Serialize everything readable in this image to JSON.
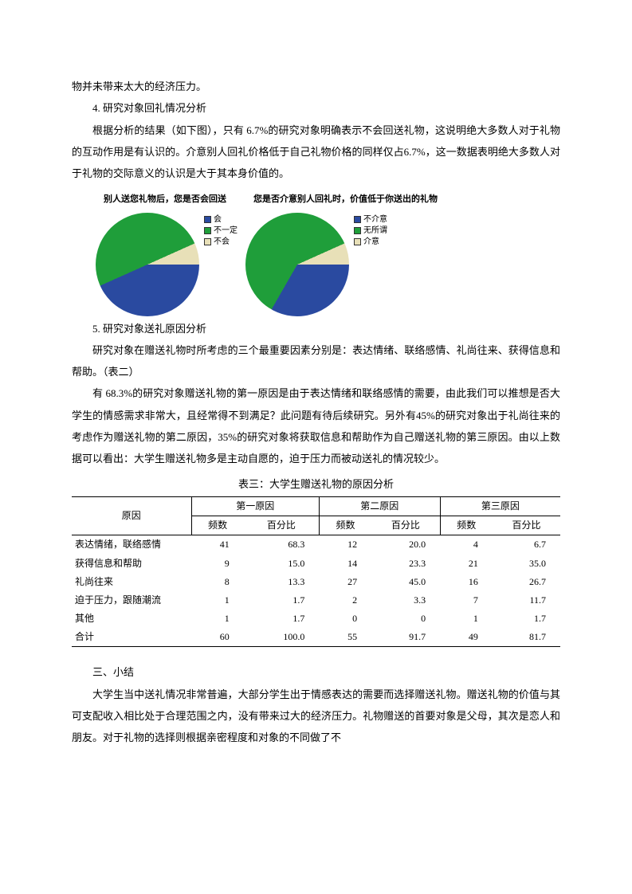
{
  "p_intro_tail": "物并未带来太大的经济压力。",
  "h4": "4.  研究对象回礼情况分析",
  "p4": "根据分析的结果（如下图），只有 6.7%的研究对象明确表示不会回送礼物，这说明绝大多数人对于礼物的互动作用是有认识的。介意别人回礼价格低于自己礼物价格的同样仅占6.7%，这一数据表明绝大多数人对于礼物的交际意义的认识是大于其本身价值的。",
  "chart1": {
    "type": "pie",
    "title": "别人送您礼物后，您是否会回送",
    "slices": [
      {
        "label": "会",
        "value": 43.3,
        "color": "#2a4aa0"
      },
      {
        "label": "不一定",
        "value": 50.0,
        "color": "#1f9e3a"
      },
      {
        "label": "不会",
        "value": 6.7,
        "color": "#e8e0b8"
      }
    ],
    "start_angle": 90,
    "background_color": "#ffffff"
  },
  "chart2": {
    "type": "pie",
    "title": "您是否介意别人回礼时，价值低于你送出的礼物",
    "slices": [
      {
        "label": "不介意",
        "value": 33.3,
        "color": "#2a4aa0"
      },
      {
        "label": "无所谓",
        "value": 60.0,
        "color": "#1f9e3a"
      },
      {
        "label": "介意",
        "value": 6.7,
        "color": "#e8e0b8"
      }
    ],
    "start_angle": 90,
    "background_color": "#ffffff"
  },
  "h5": "5.  研究对象送礼原因分析",
  "p5a": "研究对象在赠送礼物时所考虑的三个最重要因素分别是：表达情绪、联络感情、礼尚往来、获得信息和帮助。（表二）",
  "p5b": "有 68.3%的研究对象赠送礼物的第一原因是由于表达情绪和联络感情的需要，由此我们可以推想是否大学生的情感需求非常大，且经常得不到满足？此问题有待后续研究。另外有45%的研究对象出于礼尚往来的考虑作为赠送礼物的第二原因，35%的研究对象将获取信息和帮助作为自己赠送礼物的第三原因。由以上数据可以看出：大学生赠送礼物多是主动自愿的，迫于压力而被动送礼的情况较少。",
  "table": {
    "title": "表三：大学生赠送礼物的原因分析",
    "col_reason": "原因",
    "groups": [
      "第一原因",
      "第二原因",
      "第三原因"
    ],
    "sub": [
      "频数",
      "百分比"
    ],
    "rows": [
      {
        "reason": "表达情绪，联络感情",
        "v": [
          "41",
          "68.3",
          "12",
          "20.0",
          "4",
          "6.7"
        ]
      },
      {
        "reason": "获得信息和帮助",
        "v": [
          "9",
          "15.0",
          "14",
          "23.3",
          "21",
          "35.0"
        ]
      },
      {
        "reason": "礼尚往来",
        "v": [
          "8",
          "13.3",
          "27",
          "45.0",
          "16",
          "26.7"
        ]
      },
      {
        "reason": "迫于压力，跟随潮流",
        "v": [
          "1",
          "1.7",
          "2",
          "3.3",
          "7",
          "11.7"
        ]
      },
      {
        "reason": "其他",
        "v": [
          "1",
          "1.7",
          "0",
          "0",
          "1",
          "1.7"
        ]
      },
      {
        "reason": "合计",
        "v": [
          "60",
          "100.0",
          "55",
          "91.7",
          "49",
          "81.7"
        ]
      }
    ]
  },
  "h_summary": "三、小结",
  "p_summary": "大学生当中送礼情况非常普遍，大部分学生出于情感表达的需要而选择赠送礼物。赠送礼物的价值与其可支配收入相比处于合理范围之内，没有带来过大的经济压力。礼物赠送的首要对象是父母，其次是恋人和朋友。对于礼物的选择则根据亲密程度和对象的不同做了不"
}
